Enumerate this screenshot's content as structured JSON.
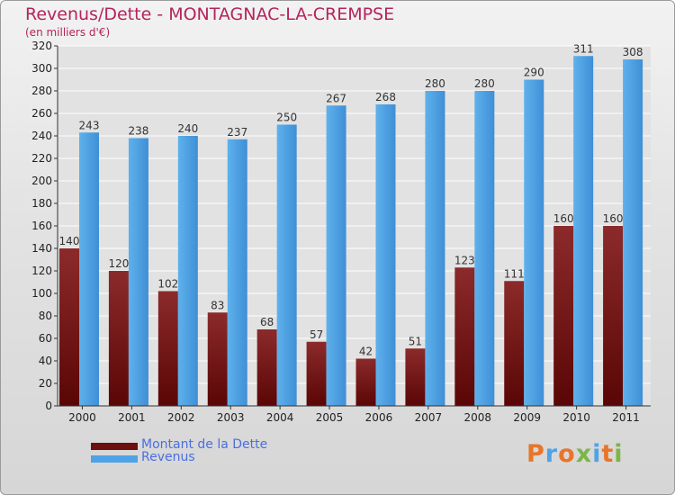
{
  "header": {
    "title": "Revenus/Dette - MONTAGNAC-LA-CREMPSE",
    "subtitle": "(en milliers d'€)"
  },
  "legend": [
    {
      "label": "Montant de la Dette",
      "color": "#6b0f0f"
    },
    {
      "label": "Revenus",
      "color": "#4ea3e6"
    }
  ],
  "logo": {
    "text": "Proxiti",
    "colors": [
      "#e8752a",
      "#4ea3e6",
      "#e8752a",
      "#7ab648",
      "#4ea3e6",
      "#e8752a",
      "#7ab648"
    ]
  },
  "chart_data": {
    "type": "bar",
    "categories": [
      "2000",
      "2001",
      "2002",
      "2003",
      "2004",
      "2005",
      "2006",
      "2007",
      "2008",
      "2009",
      "2010",
      "2011"
    ],
    "series": [
      {
        "name": "Montant de la Dette",
        "color": "#7a1a1a",
        "values": [
          140,
          120,
          102,
          83,
          68,
          57,
          42,
          51,
          123,
          111,
          160,
          160
        ]
      },
      {
        "name": "Revenus",
        "color": "#4ea3e6",
        "values": [
          243,
          238,
          240,
          237,
          250,
          267,
          268,
          280,
          280,
          290,
          311,
          308
        ]
      }
    ],
    "ylim": [
      0,
      320
    ],
    "yticks": [
      "0",
      "20",
      "40",
      "60",
      "80",
      "100",
      "120",
      "140",
      "160",
      "180",
      "200",
      "220",
      "240",
      "260",
      "280",
      "300",
      "320"
    ],
    "grid": true,
    "legend_position": "bottom-left"
  }
}
